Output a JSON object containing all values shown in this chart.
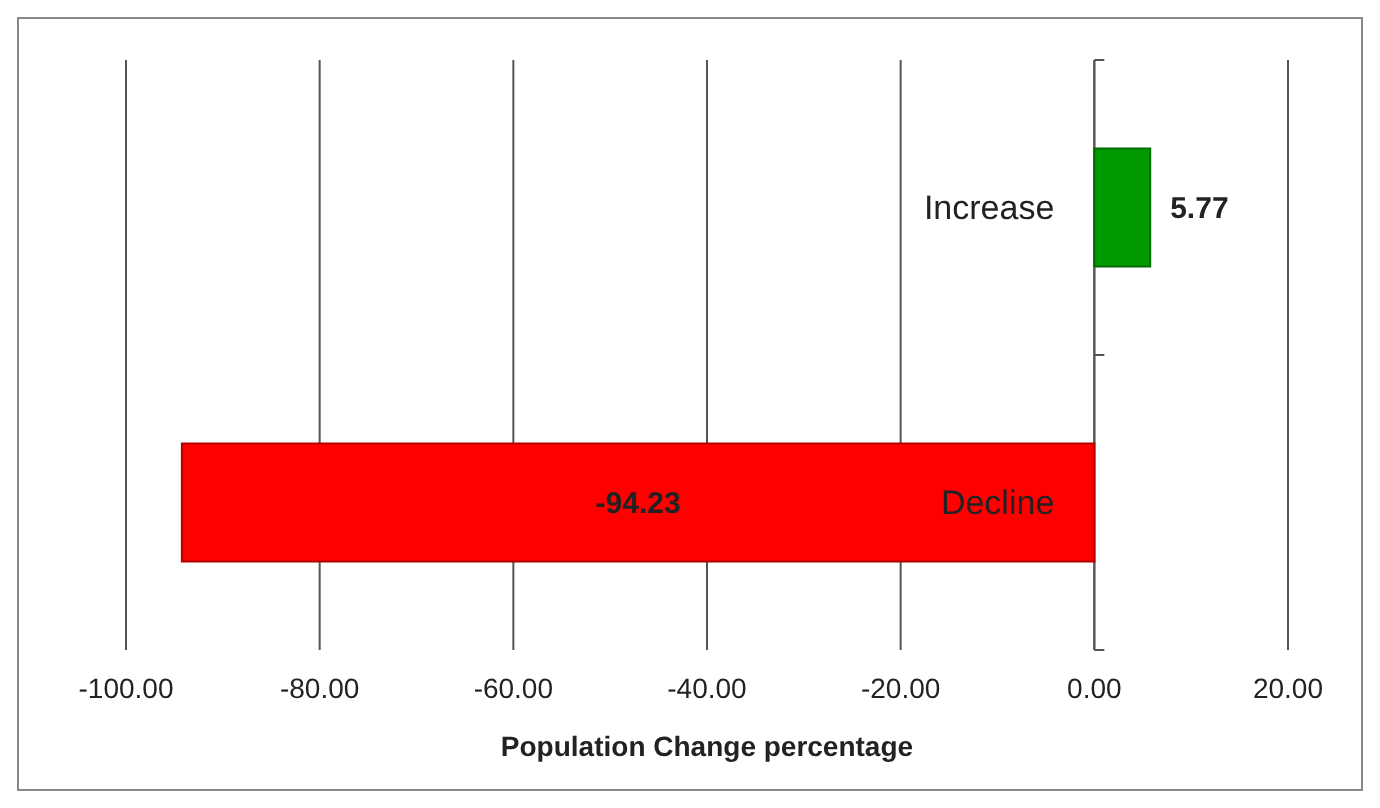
{
  "chart_data": {
    "type": "bar",
    "orientation": "horizontal",
    "categories": [
      "Increase",
      "Decline"
    ],
    "values": [
      5.77,
      -94.23
    ],
    "colors": [
      "#009900",
      "#ff0000"
    ],
    "data_labels": true,
    "xlim": [
      -100,
      20
    ],
    "xticks": [
      {
        "value": -100,
        "label": "-100.00"
      },
      {
        "value": -80,
        "label": "-80.00"
      },
      {
        "value": -60,
        "label": "-60.00"
      },
      {
        "value": -40,
        "label": "-40.00"
      },
      {
        "value": -20,
        "label": "-20.00"
      },
      {
        "value": 0,
        "label": "0.00"
      },
      {
        "value": 20,
        "label": "20.00"
      }
    ],
    "xlabel": "Population Change percentage",
    "grid": "x"
  }
}
